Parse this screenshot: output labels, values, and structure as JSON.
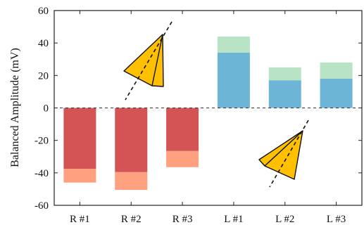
{
  "chart_data": {
    "type": "bar",
    "ylabel": "Balanced Amplitude (mV)",
    "ylim": [
      -60,
      60
    ],
    "yticks": [
      "60",
      "40",
      "20",
      "0",
      "-20",
      "-40",
      "-60"
    ],
    "yticks_values": [
      60,
      40,
      20,
      0,
      -20,
      -40,
      -60
    ],
    "categories": [
      "R #1",
      "R #2",
      "R #3",
      "L #1",
      "L #2",
      "L #3"
    ],
    "grid": false,
    "zero_line": "dashed",
    "series": [
      {
        "values": [
          -37.5,
          -39.5,
          -26.5,
          34,
          17,
          18
        ]
      },
      {
        "values": [
          -46,
          -50.5,
          -36.5,
          44,
          25,
          28
        ]
      }
    ],
    "colors": {
      "right_main": "#d45456",
      "right_extra": "#ffa07f",
      "left_main": "#6cb5d6",
      "left_extra": "#b8e3c4",
      "cone_fill": "#ffc000",
      "cone_stroke": "#111111"
    },
    "icons": [
      "cone-up-right-icon",
      "cone-down-left-icon"
    ]
  }
}
